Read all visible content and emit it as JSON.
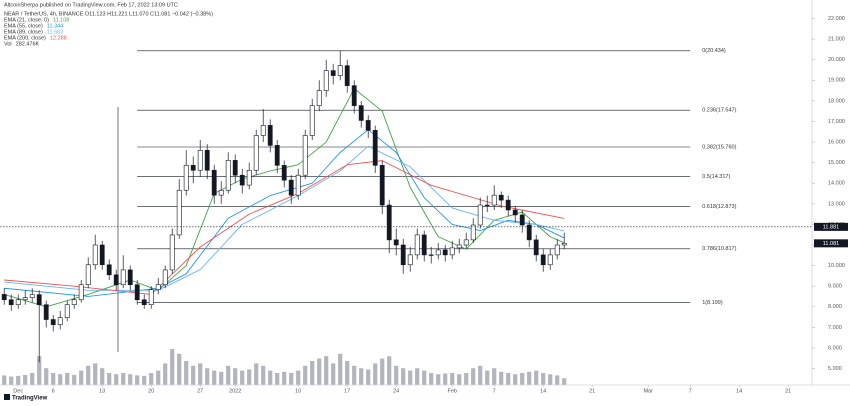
{
  "chart_data": {
    "type": "candlestick",
    "header": "AltcoinSherpa published on TradingView.com, Feb 17, 2022 13:09 UTC",
    "symbol": "NEAR / TetherUS, 4h, BINANCE  O11.123 H11.221 L11.070 C11.081 −0.042 (−0.38%)",
    "watermark": "TradingView",
    "up_color": "#ffffff",
    "down_color": "#131722",
    "x": [
      -2,
      -1,
      0,
      1,
      2,
      3,
      4,
      5,
      6,
      7,
      8,
      9,
      10,
      11,
      12,
      13,
      14,
      15,
      16,
      17,
      18,
      19,
      20,
      21,
      22,
      23,
      24,
      25,
      26,
      27,
      28,
      29,
      30,
      31,
      32,
      33,
      34,
      35,
      36,
      37,
      38,
      39,
      40,
      41,
      42,
      43,
      44,
      45,
      46,
      47,
      48,
      49,
      50,
      51,
      52,
      53,
      54,
      55,
      56,
      57,
      58,
      59,
      60,
      61,
      62,
      63,
      64,
      65,
      66,
      67,
      68,
      69,
      70,
      71,
      72,
      73,
      74,
      75,
      76,
      77,
      78
    ],
    "open": [
      8.6,
      8.34,
      8.1,
      8.34,
      8.44,
      8.59,
      8.1,
      7.38,
      7.13,
      7.47,
      8.1,
      8.34,
      9.07,
      10.04,
      11.0,
      10.04,
      9.55,
      9.07,
      9.79,
      9.07,
      8.34,
      8.1,
      8.83,
      9.07,
      9.79,
      11.49,
      13.66,
      14.87,
      14.63,
      15.6,
      14.63,
      13.42,
      13.66,
      15.11,
      14.39,
      13.91,
      14.63,
      16.32,
      16.81,
      15.84,
      14.87,
      14.15,
      13.42,
      14.39,
      16.32,
      17.77,
      18.5,
      19.47,
      19.23,
      19.71,
      18.74,
      17.77,
      17.05,
      16.57,
      14.87,
      12.94,
      11.25,
      11.0,
      10.04,
      10.52,
      11.49,
      10.52,
      10.52,
      10.76,
      10.52,
      10.86,
      11.0,
      11.25,
      11.97,
      12.94,
      12.94,
      13.42,
      13.18,
      12.7,
      12.46,
      11.97,
      11.25,
      10.52,
      10.04,
      10.52,
      11.0
    ],
    "high": [
      8.9,
      8.6,
      8.6,
      8.8,
      8.9,
      8.8,
      8.3,
      7.6,
      7.8,
      8.3,
      8.6,
      9.3,
      10.4,
      11.5,
      11.2,
      10.3,
      9.8,
      10.5,
      10.0,
      9.3,
      8.6,
      9.0,
      9.4,
      10.0,
      11.8,
      14.2,
      15.6,
      15.3,
      16.1,
      15.9,
      14.9,
      14.1,
      15.5,
      15.4,
      14.7,
      15.0,
      16.6,
      17.6,
      17.1,
      16.1,
      15.1,
      14.4,
      14.7,
      16.6,
      18.1,
      19.0,
      20.0,
      19.8,
      20.434,
      20.0,
      19.0,
      18.0,
      17.3,
      16.8,
      15.1,
      13.2,
      11.8,
      11.3,
      10.9,
      11.8,
      11.7,
      10.9,
      11.1,
      11.0,
      11.2,
      11.3,
      11.6,
      12.3,
      13.3,
      13.4,
      13.9,
      13.6,
      13.4,
      12.9,
      12.7,
      12.2,
      11.5,
      10.8,
      10.8,
      11.3,
      11.6
    ],
    "low": [
      8.1,
      7.8,
      7.9,
      8.1,
      8.2,
      5.3,
      7.0,
      6.8,
      6.9,
      7.3,
      7.9,
      8.2,
      8.9,
      9.8,
      9.8,
      9.3,
      8.8,
      8.9,
      8.8,
      8.1,
      7.9,
      7.9,
      8.6,
      8.9,
      9.6,
      11.3,
      13.4,
      14.0,
      14.3,
      14.2,
      13.0,
      13.0,
      13.5,
      14.0,
      13.5,
      13.7,
      14.4,
      16.0,
      15.5,
      14.5,
      13.8,
      13.0,
      13.2,
      14.2,
      16.1,
      17.5,
      18.2,
      18.8,
      19.0,
      18.4,
      17.4,
      16.7,
      16.2,
      14.5,
      12.5,
      10.6,
      10.5,
      9.6,
      9.7,
      10.3,
      10.2,
      10.1,
      10.3,
      10.2,
      10.3,
      10.6,
      10.8,
      11.1,
      11.8,
      12.6,
      12.7,
      12.8,
      12.4,
      12.1,
      11.6,
      10.9,
      10.2,
      9.7,
      9.8,
      10.3,
      10.8
    ],
    "close": [
      8.34,
      8.1,
      8.34,
      8.44,
      8.59,
      8.1,
      7.38,
      7.13,
      7.47,
      8.1,
      8.34,
      9.07,
      10.04,
      11.0,
      10.04,
      9.55,
      9.07,
      9.79,
      9.07,
      8.34,
      8.1,
      8.83,
      9.07,
      9.79,
      11.49,
      13.66,
      14.87,
      14.63,
      15.6,
      14.63,
      13.42,
      13.66,
      15.11,
      14.39,
      13.91,
      14.63,
      16.32,
      16.81,
      15.84,
      14.87,
      14.15,
      13.42,
      14.39,
      16.32,
      17.77,
      18.5,
      19.47,
      19.23,
      19.71,
      18.74,
      17.77,
      17.05,
      16.57,
      14.87,
      12.94,
      11.25,
      11.0,
      10.04,
      10.52,
      11.49,
      10.52,
      10.52,
      10.76,
      10.52,
      10.86,
      11.0,
      11.25,
      11.97,
      12.94,
      12.94,
      13.42,
      13.18,
      12.7,
      12.46,
      11.97,
      11.25,
      10.52,
      10.04,
      10.52,
      11.0,
      11.08
    ],
    "volume": {
      "name": "Vol",
      "legend_value": "282.476K",
      "color": "#b2b5be",
      "values": [
        400,
        350,
        380,
        420,
        500,
        1200,
        700,
        500,
        450,
        500,
        420,
        600,
        800,
        900,
        700,
        500,
        450,
        500,
        450,
        400,
        380,
        500,
        600,
        900,
        1500,
        1300,
        1000,
        800,
        900,
        700,
        600,
        550,
        800,
        700,
        600,
        650,
        900,
        800,
        600,
        500,
        550,
        500,
        600,
        800,
        1000,
        1100,
        1200,
        900,
        1300,
        1000,
        800,
        700,
        650,
        900,
        1100,
        1200,
        800,
        700,
        600,
        700,
        600,
        500,
        450,
        480,
        500,
        450,
        500,
        700,
        800,
        600,
        700,
        550,
        500,
        450,
        500,
        550,
        600,
        500,
        450,
        400,
        282.476
      ]
    },
    "series": [
      {
        "name": "EMA (21, close, 0)",
        "legend_value": "11.108",
        "color": "#43a047",
        "x": [
          -2,
          4,
          10,
          16,
          20,
          24,
          28,
          32,
          36,
          40,
          44,
          48,
          52,
          56,
          60,
          64,
          68,
          72,
          76,
          78
        ],
        "values": [
          8.6,
          8.0,
          8.6,
          9.3,
          8.8,
          10.0,
          13.5,
          14.2,
          14.6,
          14.9,
          16.0,
          18.6,
          17.5,
          13.8,
          11.4,
          10.8,
          12.2,
          12.6,
          11.4,
          11.108
        ]
      },
      {
        "name": "EMA (55, close)",
        "legend_value": "11.344",
        "color": "#2196f3",
        "x": [
          -2,
          10,
          20,
          24,
          30,
          36,
          42,
          46,
          50,
          54,
          58,
          62,
          66,
          70,
          74,
          78
        ],
        "values": [
          8.9,
          8.5,
          8.9,
          9.6,
          12.3,
          13.4,
          14.0,
          15.5,
          16.6,
          15.5,
          13.3,
          12.0,
          11.7,
          12.2,
          12.0,
          11.344
        ]
      },
      {
        "name": "EMA (89, close)",
        "legend_value": "11.683",
        "color": "#64b5f6",
        "x": [
          -2,
          10,
          20,
          26,
          32,
          40,
          46,
          50,
          56,
          62,
          68,
          74,
          78
        ],
        "values": [
          9.2,
          8.8,
          8.8,
          9.8,
          12.0,
          13.4,
          14.6,
          15.8,
          14.8,
          12.8,
          12.2,
          12.0,
          11.683
        ]
      },
      {
        "name": "EMA (200, close)",
        "legend_value": "12.288",
        "color": "#ef5350",
        "x": [
          -2,
          8,
          19,
          26,
          33,
          40,
          47,
          52,
          59,
          69,
          78
        ],
        "values": [
          9.3,
          9.0,
          8.6,
          10.9,
          12.5,
          13.5,
          14.9,
          15.1,
          13.9,
          12.9,
          12.288
        ]
      }
    ],
    "xlim": [
      -2.6,
      113.4
    ],
    "xticks": [
      {
        "value": 0,
        "label": "Dec"
      },
      {
        "value": 5,
        "label": "6"
      },
      {
        "value": 12,
        "label": "13"
      },
      {
        "value": 19,
        "label": "20"
      },
      {
        "value": 26,
        "label": "27"
      },
      {
        "value": 31,
        "label": "2022"
      },
      {
        "value": 40,
        "label": "10"
      },
      {
        "value": 47,
        "label": "17"
      },
      {
        "value": 54,
        "label": "24"
      },
      {
        "value": 62,
        "label": "Feb"
      },
      {
        "value": 68,
        "label": "7"
      },
      {
        "value": 75,
        "label": "14"
      },
      {
        "value": 82,
        "label": "21"
      },
      {
        "value": 90,
        "label": "Mar"
      },
      {
        "value": 96,
        "label": "7"
      },
      {
        "value": 103,
        "label": "14"
      },
      {
        "value": 110,
        "label": "21"
      }
    ],
    "ylim": [
      4.2,
      22.9
    ],
    "yticks": [
      {
        "value": 5,
        "label": "5.000"
      },
      {
        "value": 6,
        "label": "6.000"
      },
      {
        "value": 7,
        "label": "7.000"
      },
      {
        "value": 8,
        "label": "8.000"
      },
      {
        "value": 9,
        "label": "9.000"
      },
      {
        "value": 10,
        "label": "10.000"
      },
      {
        "value": 11,
        "label": "11.000"
      },
      {
        "value": 12,
        "label": "12.000"
      },
      {
        "value": 13,
        "label": "13.000"
      },
      {
        "value": 14,
        "label": "14.000"
      },
      {
        "value": 15,
        "label": "15.000"
      },
      {
        "value": 16,
        "label": "16.000"
      },
      {
        "value": 17,
        "label": "17.000"
      },
      {
        "value": 18,
        "label": "18.000"
      },
      {
        "value": 19,
        "label": "19.000"
      },
      {
        "value": 20,
        "label": "20.000"
      },
      {
        "value": 21,
        "label": "21.000"
      },
      {
        "value": 22,
        "label": "22.000"
      }
    ],
    "fib_levels": [
      {
        "value": 20.434,
        "label": "0(20.434)"
      },
      {
        "value": 17.547,
        "label": "0.236(17.547)"
      },
      {
        "value": 15.76,
        "label": "0.382(15.760)"
      },
      {
        "value": 14.317,
        "label": "0.5(14.317)"
      },
      {
        "value": 12.873,
        "label": "0.618(12.873)"
      },
      {
        "value": 10.817,
        "label": "0.786(10.817)"
      },
      {
        "value": 8.199,
        "label": "1(8.199)"
      }
    ],
    "price_tags": [
      {
        "value": 11.881,
        "label": "11.881",
        "color": "#131722"
      },
      {
        "value": 11.081,
        "label": "11.081",
        "color": "#131722"
      }
    ]
  }
}
